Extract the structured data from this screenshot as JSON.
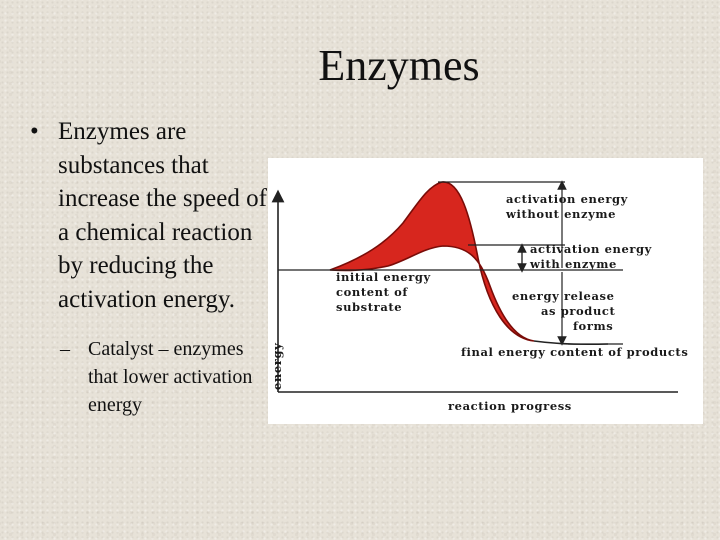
{
  "slide": {
    "title": "Enzymes",
    "bullet_marker": "•",
    "bullet_text": "Enzymes are substances that increase the speed of a chemical reaction by reducing the activation energy.",
    "sub_marker": "–",
    "sub_bullet_text": "Catalyst – enzymes that lower activation energy"
  },
  "diagram": {
    "y_axis_label": "energy",
    "x_axis_label": "reaction progress",
    "initial_energy_label": [
      "initial energy",
      "content of",
      "substrate"
    ],
    "activation_without_label": [
      "activation energy",
      "without enzyme"
    ],
    "activation_with_label": [
      "activation energy",
      "with enzyme"
    ],
    "energy_release_label": [
      "energy release",
      "as product",
      "forms"
    ],
    "final_energy_label": "final energy content of products",
    "colors": {
      "curve_fill": "#d7261e",
      "curve_stroke": "#7a0c08",
      "lines": "#222222"
    }
  }
}
